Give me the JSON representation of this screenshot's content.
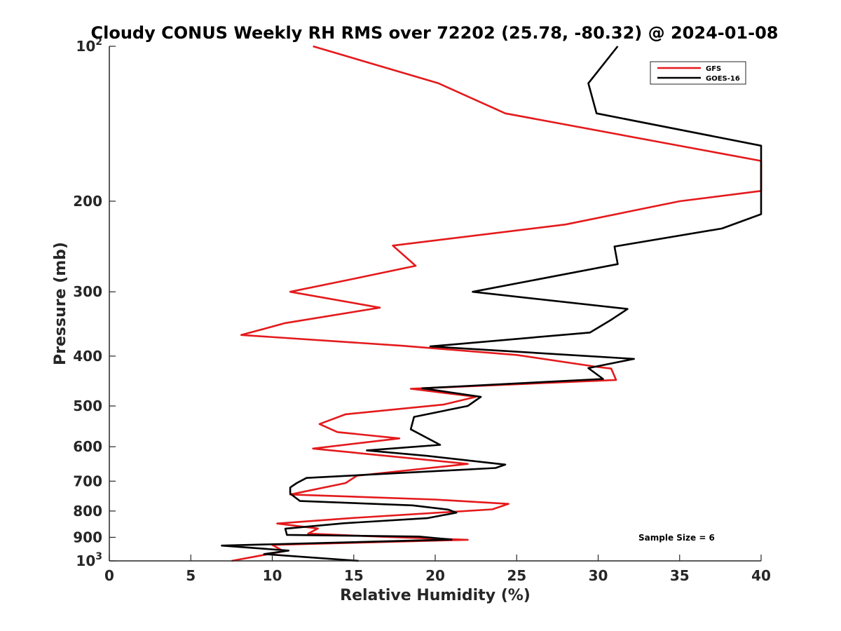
{
  "chart_data": {
    "type": "line",
    "title": "Cloudy CONUS Weekly RH RMS over 72202 (25.78, -80.32) @ 2024-01-08",
    "xlabel": "Relative Humidity (%)",
    "ylabel": "Pressure (mb)",
    "xlim": [
      0,
      40
    ],
    "ylim": [
      100,
      1000
    ],
    "y_scale": "log",
    "y_reversed": true,
    "grid": false,
    "legend_placement": "top-right",
    "annotation": "Sample Size = 6",
    "x_ticks": [
      "0",
      "5",
      "10",
      "15",
      "20",
      "25",
      "30",
      "35",
      "40"
    ],
    "y_ticks": [
      {
        "value": 100,
        "base": "10",
        "exp": "2"
      },
      {
        "value": 200,
        "label": "200"
      },
      {
        "value": 300,
        "label": "300"
      },
      {
        "value": 400,
        "label": "400"
      },
      {
        "value": 500,
        "label": "500"
      },
      {
        "value": 600,
        "label": "600"
      },
      {
        "value": 700,
        "label": "700"
      },
      {
        "value": 800,
        "label": "800"
      },
      {
        "value": 900,
        "label": "900"
      },
      {
        "value": 1000,
        "base": "10",
        "exp": "3"
      }
    ],
    "series": [
      {
        "name": "GFS",
        "color": "#e41a1c",
        "points": [
          [
            12.5,
            100
          ],
          [
            20.2,
            118
          ],
          [
            24.3,
            135
          ],
          [
            40,
            167
          ],
          [
            40,
            191
          ],
          [
            35,
            200
          ],
          [
            28,
            222
          ],
          [
            17.4,
            244
          ],
          [
            18.8,
            267
          ],
          [
            15,
            283
          ],
          [
            11.1,
            300
          ],
          [
            16.6,
            322
          ],
          [
            10.8,
            345
          ],
          [
            8.1,
            364
          ],
          [
            18,
            382
          ],
          [
            25,
            398
          ],
          [
            30,
            420
          ],
          [
            30.8,
            423
          ],
          [
            31.1,
            445
          ],
          [
            18.5,
            463
          ],
          [
            22.5,
            480
          ],
          [
            20.5,
            497
          ],
          [
            14.5,
            519
          ],
          [
            12.9,
            542
          ],
          [
            14,
            562
          ],
          [
            17.8,
            578
          ],
          [
            12.5,
            605
          ],
          [
            22,
            648
          ],
          [
            15.2,
            683
          ],
          [
            14.5,
            706
          ],
          [
            11.1,
            743
          ],
          [
            20,
            760
          ],
          [
            24.5,
            775
          ],
          [
            23.5,
            794
          ],
          [
            15,
            825
          ],
          [
            10.3,
            846
          ],
          [
            12.8,
            865
          ],
          [
            12.2,
            885
          ],
          [
            16.9,
            898
          ],
          [
            22,
            910
          ],
          [
            10,
            931
          ],
          [
            10.7,
            958
          ],
          [
            7.5,
            1000
          ]
        ]
      },
      {
        "name": "GOES-16",
        "color": "#000000",
        "points": [
          [
            31.2,
            100
          ],
          [
            29.4,
            118
          ],
          [
            29.9,
            135
          ],
          [
            40,
            156
          ],
          [
            40,
            212
          ],
          [
            37.6,
            226
          ],
          [
            31,
            245
          ],
          [
            31.2,
            265
          ],
          [
            22.3,
            300
          ],
          [
            31.8,
            324
          ],
          [
            30.8,
            340
          ],
          [
            29.5,
            360
          ],
          [
            19.7,
            383
          ],
          [
            32.2,
            405
          ],
          [
            29.4,
            422
          ],
          [
            30.3,
            443
          ],
          [
            19.2,
            462
          ],
          [
            22.8,
            480
          ],
          [
            22,
            500
          ],
          [
            18.7,
            525
          ],
          [
            18.5,
            555
          ],
          [
            20.3,
            595
          ],
          [
            15.8,
            610
          ],
          [
            19.5,
            625
          ],
          [
            24.3,
            650
          ],
          [
            23.7,
            660
          ],
          [
            12.1,
            690
          ],
          [
            11.5,
            706
          ],
          [
            11.1,
            720
          ],
          [
            11.1,
            740
          ],
          [
            11.7,
            765
          ],
          [
            18.6,
            780
          ],
          [
            20.8,
            795
          ],
          [
            21.3,
            806
          ],
          [
            19.5,
            826
          ],
          [
            14.4,
            845
          ],
          [
            10.8,
            866
          ],
          [
            10.9,
            890
          ],
          [
            19,
            897
          ],
          [
            21,
            909
          ],
          [
            6.9,
            934
          ],
          [
            11,
            955
          ],
          [
            9.5,
            970
          ],
          [
            15.3,
            1000
          ]
        ]
      }
    ]
  }
}
